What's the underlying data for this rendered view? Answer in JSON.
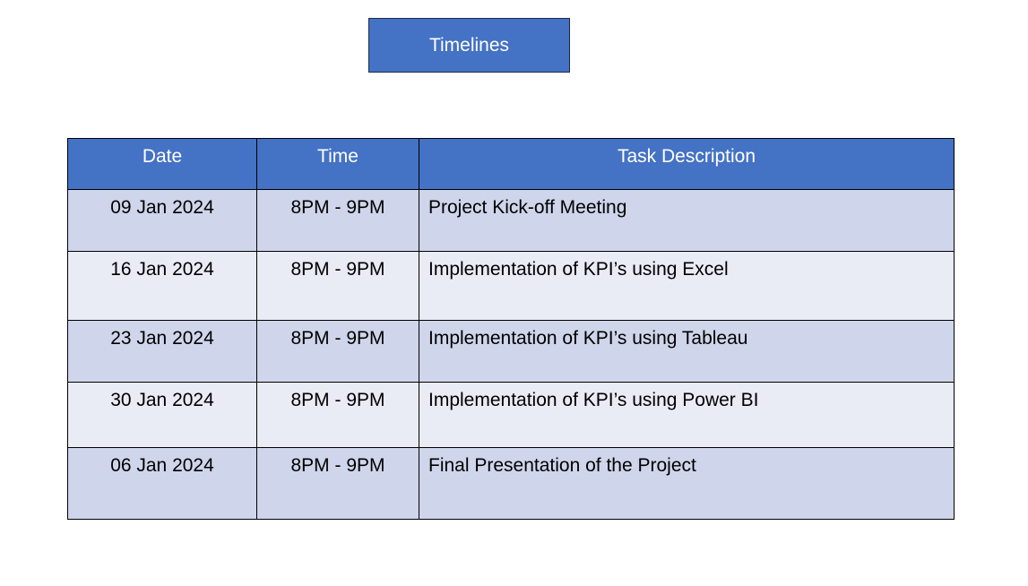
{
  "title": "Timelines",
  "table": {
    "headers": {
      "date": "Date",
      "time": "Time",
      "task": "Task Description"
    },
    "rows": [
      {
        "date": "09 Jan 2024",
        "time": "8PM - 9PM",
        "task": "Project Kick-off Meeting"
      },
      {
        "date": "16 Jan 2024",
        "time": "8PM - 9PM",
        "task": "Implementation of KPI’s using Excel"
      },
      {
        "date": "23 Jan 2024",
        "time": "8PM - 9PM",
        "task": "Implementation of KPI’s using Tableau"
      },
      {
        "date": "30 Jan 2024",
        "time": "8PM - 9PM",
        "task": "Implementation of KPI’s using Power BI"
      },
      {
        "date": "06 Jan 2024",
        "time": "8PM - 9PM",
        "task": "Final Presentation of the Project"
      }
    ]
  },
  "colors": {
    "header_bg": "#4472c4",
    "row_dark": "#cfd5ea",
    "row_light": "#e9ebf5"
  }
}
